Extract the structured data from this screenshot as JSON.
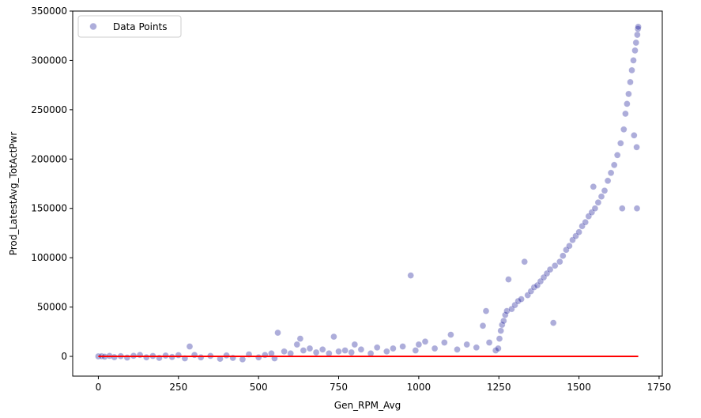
{
  "chart_data": {
    "type": "scatter",
    "xlabel": "Gen_RPM_Avg",
    "ylabel": "Prod_LatestAvg_TotActPwr",
    "xlim": [
      -80,
      1760
    ],
    "ylim": [
      -20000,
      350000
    ],
    "xticks": [
      0,
      250,
      500,
      750,
      1000,
      1250,
      1500,
      1750
    ],
    "yticks": [
      0,
      50000,
      100000,
      150000,
      200000,
      250000,
      300000,
      350000
    ],
    "grid": false,
    "legend": {
      "placement": "top-left",
      "entries": [
        "Data Points"
      ]
    },
    "colors": {
      "points": "#00008b",
      "fit_line": "#ff0000"
    },
    "series": [
      {
        "name": "Data Points",
        "kind": "scatter",
        "points": [
          [
            0,
            0
          ],
          [
            10,
            200
          ],
          [
            20,
            -300
          ],
          [
            35,
            500
          ],
          [
            50,
            -800
          ],
          [
            70,
            300
          ],
          [
            90,
            -1200
          ],
          [
            110,
            600
          ],
          [
            130,
            1500
          ],
          [
            150,
            -900
          ],
          [
            170,
            400
          ],
          [
            190,
            -1500
          ],
          [
            210,
            800
          ],
          [
            230,
            -600
          ],
          [
            250,
            1200
          ],
          [
            270,
            -2000
          ],
          [
            285,
            10000
          ],
          [
            300,
            1500
          ],
          [
            320,
            -1000
          ],
          [
            350,
            500
          ],
          [
            380,
            -2500
          ],
          [
            400,
            1000
          ],
          [
            420,
            -1500
          ],
          [
            450,
            -3000
          ],
          [
            470,
            2000
          ],
          [
            500,
            -1000
          ],
          [
            520,
            1500
          ],
          [
            540,
            3000
          ],
          [
            550,
            -2000
          ],
          [
            560,
            24000
          ],
          [
            580,
            5000
          ],
          [
            600,
            3000
          ],
          [
            620,
            12000
          ],
          [
            630,
            18000
          ],
          [
            640,
            6000
          ],
          [
            660,
            8000
          ],
          [
            680,
            4000
          ],
          [
            700,
            7000
          ],
          [
            720,
            3000
          ],
          [
            735,
            20000
          ],
          [
            750,
            5000
          ],
          [
            770,
            6000
          ],
          [
            790,
            4000
          ],
          [
            800,
            12000
          ],
          [
            820,
            7000
          ],
          [
            850,
            3000
          ],
          [
            870,
            9000
          ],
          [
            900,
            5000
          ],
          [
            920,
            8000
          ],
          [
            950,
            10000
          ],
          [
            975,
            82000
          ],
          [
            990,
            6000
          ],
          [
            1000,
            12000
          ],
          [
            1020,
            15000
          ],
          [
            1050,
            8000
          ],
          [
            1080,
            14000
          ],
          [
            1100,
            22000
          ],
          [
            1120,
            7000
          ],
          [
            1150,
            12000
          ],
          [
            1180,
            9000
          ],
          [
            1200,
            31000
          ],
          [
            1210,
            46000
          ],
          [
            1220,
            14000
          ],
          [
            1240,
            6000
          ],
          [
            1248,
            8000
          ],
          [
            1252,
            18000
          ],
          [
            1256,
            26000
          ],
          [
            1260,
            32000
          ],
          [
            1265,
            36000
          ],
          [
            1270,
            42000
          ],
          [
            1275,
            46000
          ],
          [
            1280,
            78000
          ],
          [
            1290,
            48000
          ],
          [
            1300,
            52000
          ],
          [
            1310,
            56000
          ],
          [
            1320,
            58000
          ],
          [
            1330,
            96000
          ],
          [
            1340,
            62000
          ],
          [
            1350,
            66000
          ],
          [
            1360,
            70000
          ],
          [
            1370,
            72000
          ],
          [
            1380,
            76000
          ],
          [
            1390,
            80000
          ],
          [
            1400,
            84000
          ],
          [
            1410,
            88000
          ],
          [
            1420,
            34000
          ],
          [
            1425,
            92000
          ],
          [
            1440,
            96000
          ],
          [
            1450,
            102000
          ],
          [
            1460,
            108000
          ],
          [
            1470,
            112000
          ],
          [
            1480,
            118000
          ],
          [
            1490,
            122000
          ],
          [
            1500,
            126000
          ],
          [
            1510,
            132000
          ],
          [
            1520,
            136000
          ],
          [
            1530,
            142000
          ],
          [
            1540,
            146000
          ],
          [
            1545,
            172000
          ],
          [
            1550,
            150000
          ],
          [
            1560,
            156000
          ],
          [
            1570,
            162000
          ],
          [
            1580,
            168000
          ],
          [
            1590,
            178000
          ],
          [
            1600,
            186000
          ],
          [
            1610,
            194000
          ],
          [
            1620,
            204000
          ],
          [
            1630,
            216000
          ],
          [
            1635,
            150000
          ],
          [
            1640,
            230000
          ],
          [
            1645,
            246000
          ],
          [
            1650,
            256000
          ],
          [
            1655,
            266000
          ],
          [
            1660,
            278000
          ],
          [
            1665,
            290000
          ],
          [
            1670,
            300000
          ],
          [
            1672,
            224000
          ],
          [
            1675,
            310000
          ],
          [
            1678,
            318000
          ],
          [
            1680,
            212000
          ],
          [
            1681,
            150000
          ],
          [
            1682,
            326000
          ],
          [
            1684,
            332000
          ],
          [
            1685,
            334000
          ]
        ]
      },
      {
        "name": "",
        "kind": "line",
        "points": [
          [
            0,
            0
          ],
          [
            1685,
            0
          ]
        ]
      }
    ]
  }
}
